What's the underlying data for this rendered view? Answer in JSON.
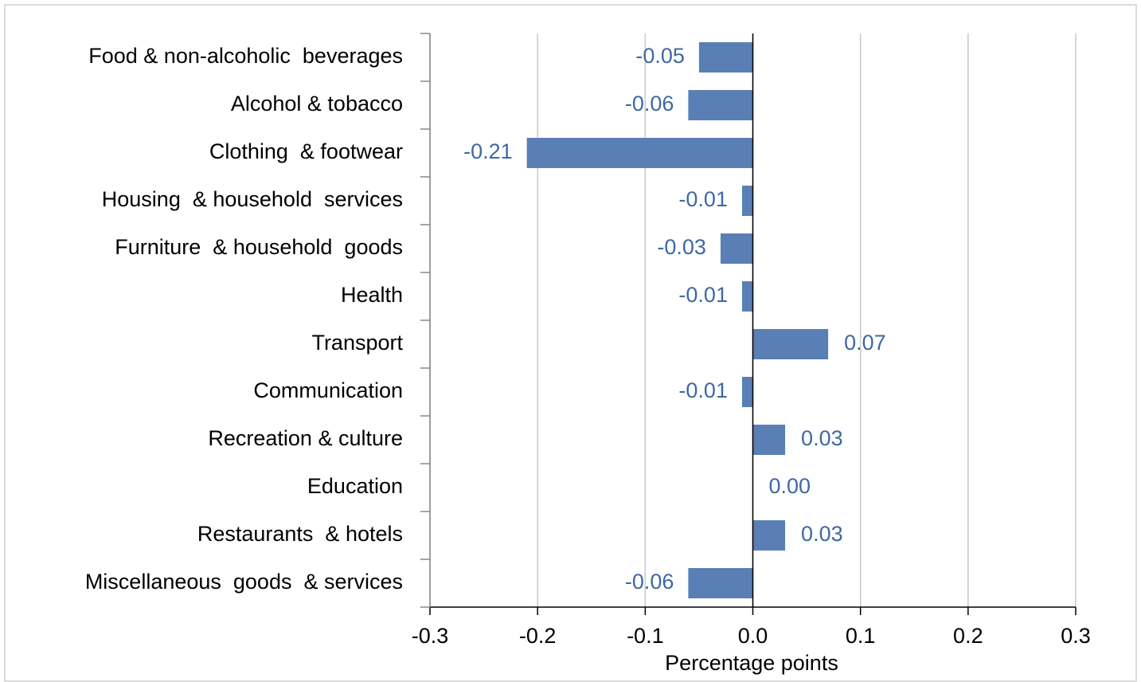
{
  "chart_data": {
    "type": "bar",
    "orientation": "horizontal",
    "x_label": "Percentage points",
    "categories": [
      "Food & non-alcoholic  beverages",
      "Alcohol & tobacco",
      "Clothing  & footwear",
      "Housing  & household  services",
      "Furniture  & household  goods",
      "Health",
      "Transport",
      "Communication",
      "Recreation & culture",
      "Education",
      "Restaurants  & hotels",
      "Miscellaneous  goods  & services"
    ],
    "values": [
      -0.05,
      -0.06,
      -0.21,
      -0.01,
      -0.03,
      -0.01,
      0.07,
      -0.01,
      0.03,
      0,
      0.03,
      -0.06
    ],
    "value_labels": [
      "-0.05",
      "-0.06",
      "-0.21",
      "-0.01",
      "-0.03",
      "-0.01",
      "0.07",
      "-0.01",
      "0.03",
      "0.00",
      "0.03",
      "-0.06"
    ],
    "color": "#5a7fb5",
    "label_color": "#3f68a3",
    "xlim": [
      -0.3,
      0.3
    ],
    "xticks": [
      -0.3,
      -0.2,
      -0.1,
      {
        "value": 0,
        "label": "0.0"
      },
      0.1,
      0.2,
      0.3
    ],
    "grid": true
  }
}
